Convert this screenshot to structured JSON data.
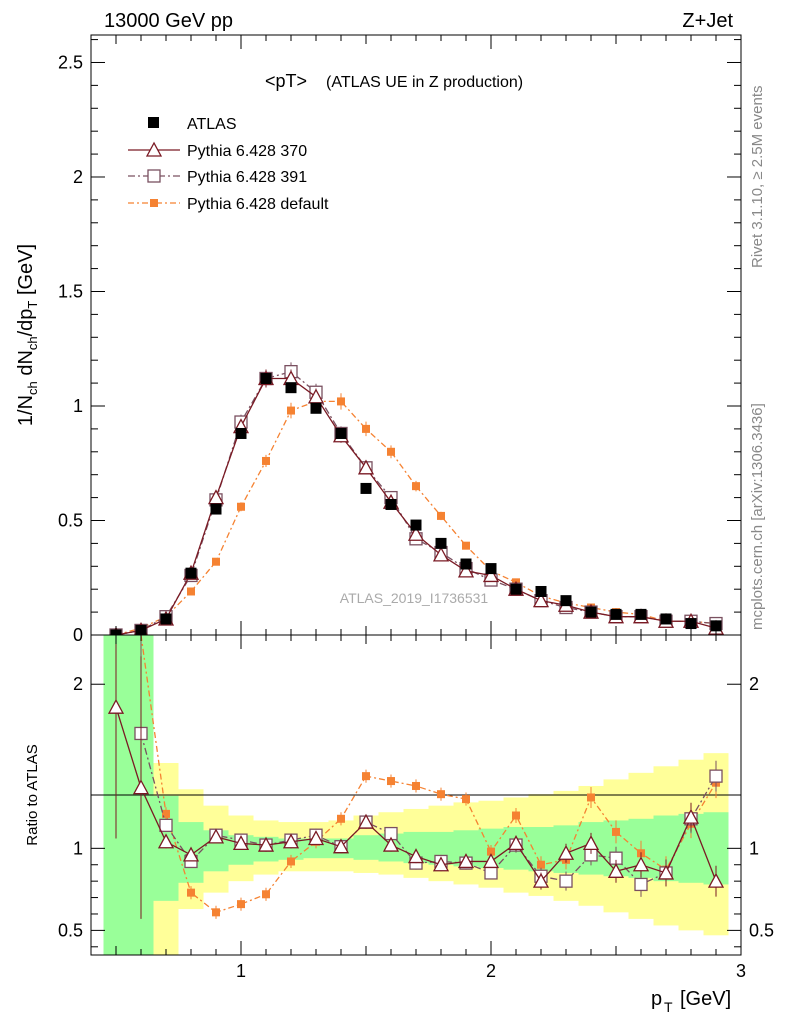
{
  "header": {
    "left": "13000 GeV pp",
    "right": "Z+Jet"
  },
  "side_text": {
    "rivet": "Rivet 3.1.10, ≥ 2.5M events",
    "mcplots": "mcplots.cern.ch [arXiv:1306.3436]"
  },
  "watermark": "ATLAS_2019_I1736531",
  "colors": {
    "atlas": "#000000",
    "p370": "#7a1a24",
    "p391": "#7a5060",
    "pdef": "#f58232",
    "band_green": "#99ff99",
    "band_yellow": "#ffff99"
  },
  "chart_data": [
    {
      "type": "scatter",
      "title_main": "<pT>",
      "title_sub": "(ATLAS UE in Z production)",
      "xlabel_main": "p",
      "xlabel_sub": "T",
      "xlabel_unit": "[GeV]",
      "ylabel": "1/N_ch dN_ch/dp_T [GeV]",
      "xlim": [
        0.4,
        3.0
      ],
      "ylim": [
        0,
        2.62
      ],
      "y_ticks": [
        "0",
        "0.5",
        "1",
        "1.5",
        "2",
        "2.5"
      ],
      "y_tick_values": [
        0,
        0.5,
        1,
        1.5,
        2,
        2.5
      ],
      "x_ticks": [
        1,
        2,
        3
      ],
      "legend": [
        "ATLAS",
        "Pythia 6.428 370",
        "Pythia 6.428 391",
        "Pythia 6.428 default"
      ],
      "x": [
        0.5,
        0.6,
        0.7,
        0.8,
        0.9,
        1.0,
        1.1,
        1.2,
        1.3,
        1.4,
        1.5,
        1.6,
        1.7,
        1.8,
        1.9,
        2.0,
        2.1,
        2.2,
        2.3,
        2.4,
        2.5,
        2.6,
        2.7,
        2.8,
        2.9
      ],
      "series": [
        {
          "name": "ATLAS",
          "values": [
            0.0,
            0.02,
            0.07,
            0.27,
            0.55,
            0.88,
            1.12,
            1.08,
            0.99,
            0.88,
            0.64,
            0.57,
            0.48,
            0.4,
            0.31,
            0.29,
            0.2,
            0.19,
            0.15,
            0.1,
            0.09,
            0.09,
            0.07,
            0.05,
            0.04
          ]
        },
        {
          "name": "Pythia 6.428 370",
          "values": [
            0.0,
            0.02,
            0.07,
            0.27,
            0.6,
            0.91,
            1.12,
            1.12,
            1.04,
            0.87,
            0.73,
            0.58,
            0.44,
            0.35,
            0.28,
            0.26,
            0.2,
            0.15,
            0.13,
            0.1,
            0.08,
            0.08,
            0.06,
            0.06,
            0.03
          ]
        },
        {
          "name": "Pythia 6.428 391",
          "values": [
            0.0,
            0.02,
            0.08,
            0.26,
            0.59,
            0.93,
            1.12,
            1.15,
            1.06,
            0.88,
            0.73,
            0.6,
            0.42,
            0.36,
            0.29,
            0.24,
            0.2,
            0.15,
            0.12,
            0.1,
            0.08,
            0.08,
            0.06,
            0.06,
            0.05
          ]
        },
        {
          "name": "Pythia 6.428 default",
          "values": [
            0.0,
            0.03,
            0.08,
            0.19,
            0.32,
            0.56,
            0.76,
            0.98,
            1.02,
            1.02,
            0.9,
            0.8,
            0.65,
            0.52,
            0.39,
            0.28,
            0.23,
            0.17,
            0.14,
            0.12,
            0.1,
            0.09,
            0.06,
            0.06,
            0.05
          ]
        }
      ]
    },
    {
      "type": "scatter",
      "ylabel": "Ratio to ATLAS",
      "xlim": [
        0.4,
        3.0
      ],
      "ylim": [
        0.35,
        2.3
      ],
      "y_ticks": [
        "0.5",
        "1",
        "2"
      ],
      "y_tick_values": [
        0.5,
        1,
        2
      ],
      "x_ticks": [
        1,
        2,
        3
      ],
      "x": [
        0.5,
        0.6,
        0.7,
        0.8,
        0.9,
        1.0,
        1.1,
        1.2,
        1.3,
        1.4,
        1.5,
        1.6,
        1.7,
        1.8,
        1.9,
        2.0,
        2.1,
        2.2,
        2.3,
        2.4,
        2.5,
        2.6,
        2.7,
        2.8,
        2.9
      ],
      "bands": {
        "edges": [
          0.45,
          0.55,
          0.65,
          0.75,
          0.85,
          0.95,
          1.05,
          1.15,
          1.25,
          1.35,
          1.45,
          1.55,
          1.65,
          1.75,
          1.85,
          1.95,
          2.05,
          2.15,
          2.25,
          2.35,
          2.45,
          2.55,
          2.65,
          2.75,
          2.85,
          2.95
        ],
        "green_lo": [
          0.35,
          0.35,
          0.68,
          0.79,
          0.86,
          0.9,
          0.92,
          0.93,
          0.94,
          0.94,
          0.93,
          0.92,
          0.91,
          0.9,
          0.89,
          0.88,
          0.87,
          0.86,
          0.85,
          0.84,
          0.83,
          0.82,
          0.8,
          0.79,
          0.78
        ],
        "green_hi": [
          2.3,
          2.3,
          1.32,
          1.16,
          1.11,
          1.08,
          1.07,
          1.06,
          1.06,
          1.06,
          1.08,
          1.09,
          1.1,
          1.1,
          1.11,
          1.12,
          1.13,
          1.13,
          1.14,
          1.16,
          1.17,
          1.18,
          1.2,
          1.21,
          1.22
        ],
        "yellow_lo": [
          0.35,
          0.35,
          0.35,
          0.63,
          0.73,
          0.8,
          0.84,
          0.86,
          0.86,
          0.86,
          0.85,
          0.84,
          0.82,
          0.8,
          0.78,
          0.76,
          0.73,
          0.71,
          0.68,
          0.65,
          0.61,
          0.57,
          0.53,
          0.5,
          0.47
        ],
        "yellow_hi": [
          2.3,
          2.3,
          1.52,
          1.36,
          1.26,
          1.2,
          1.17,
          1.16,
          1.16,
          1.17,
          1.2,
          1.22,
          1.24,
          1.26,
          1.28,
          1.29,
          1.31,
          1.33,
          1.35,
          1.38,
          1.42,
          1.46,
          1.5,
          1.54,
          1.58
        ]
      },
      "series": [
        {
          "name": "Pythia 6.428 370",
          "values": [
            1.86,
            1.37,
            1.04,
            0.96,
            1.07,
            1.03,
            1.02,
            1.04,
            1.06,
            1.01,
            1.16,
            1.02,
            0.95,
            0.9,
            0.92,
            0.92,
            1.03,
            0.8,
            0.97,
            1.03,
            0.86,
            0.9,
            0.85,
            1.19,
            0.8
          ]
        },
        {
          "name": "Pythia 6.428 391",
          "values": [
            null,
            1.7,
            1.14,
            0.92,
            1.08,
            1.05,
            1.02,
            1.05,
            1.08,
            1.01,
            1.16,
            1.09,
            0.91,
            0.92,
            0.91,
            0.85,
            1.02,
            0.83,
            0.8,
            0.96,
            0.94,
            0.78,
            0.85,
            1.18,
            1.44
          ]
        },
        {
          "name": "Pythia 6.428 default",
          "values": [
            null,
            2.3,
            1.21,
            0.73,
            0.61,
            0.66,
            0.72,
            0.92,
            1.04,
            1.18,
            1.44,
            1.41,
            1.38,
            1.33,
            1.3,
            0.98,
            1.2,
            0.9,
            0.93,
            1.31,
            1.1,
            0.97,
            0.87,
            1.15,
            1.4
          ]
        }
      ]
    }
  ]
}
